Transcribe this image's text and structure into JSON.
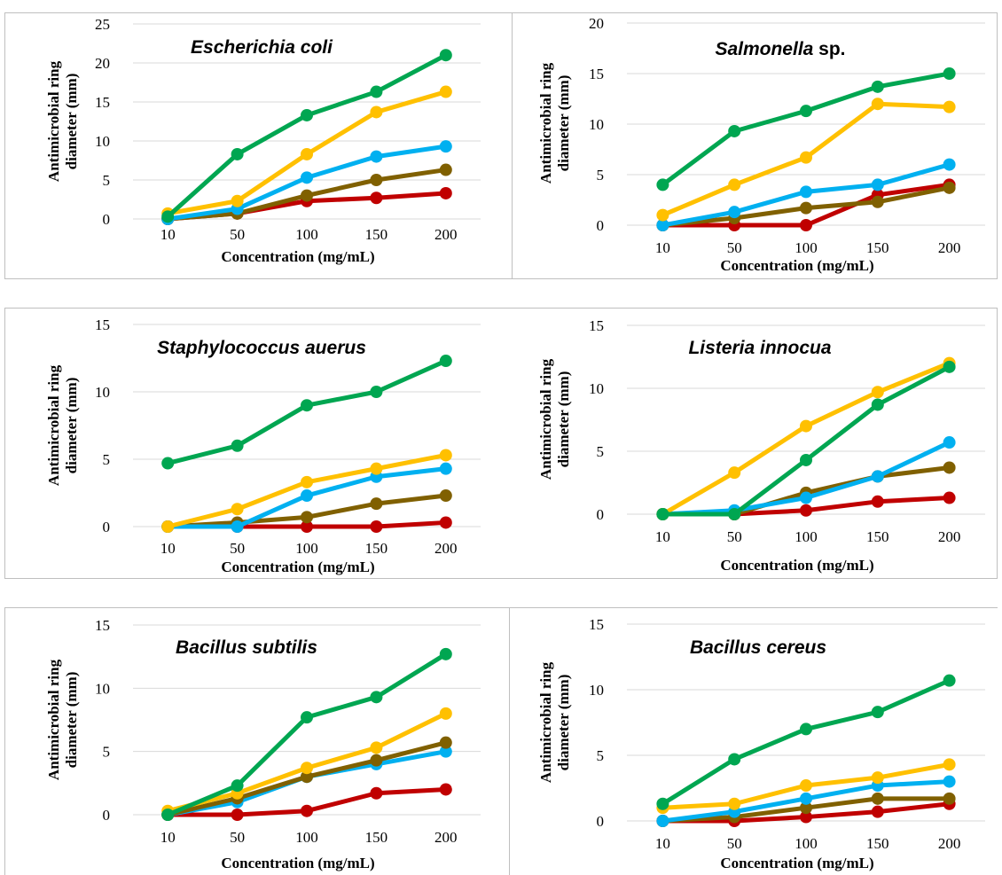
{
  "series_colors": [
    "#00a651",
    "#ffc000",
    "#00b0f0",
    "#806000",
    "#c00000"
  ],
  "xlabel": "Concentration (mg/mL)",
  "ylabel_lines": [
    "Antimicrobial ring",
    "diameter (mm)"
  ],
  "chart_data": [
    {
      "type": "line",
      "title": "Escherichia coli",
      "title_suffix": "",
      "categories": [
        "10",
        "50",
        "100",
        "150",
        "200"
      ],
      "ylim": [
        0,
        25
      ],
      "yticks": [
        0,
        5,
        10,
        15,
        20,
        25
      ],
      "grid": true,
      "series": [
        {
          "color": "#00a651",
          "values": [
            0.3,
            8.3,
            13.3,
            16.3,
            21.0
          ]
        },
        {
          "color": "#ffc000",
          "values": [
            0.7,
            2.3,
            8.3,
            13.7,
            16.3
          ]
        },
        {
          "color": "#00b0f0",
          "values": [
            0,
            1.3,
            5.3,
            8.0,
            9.3
          ]
        },
        {
          "color": "#806000",
          "values": [
            0,
            0.7,
            3.0,
            5.0,
            6.3
          ]
        },
        {
          "color": "#c00000",
          "values": [
            0,
            0.7,
            2.3,
            2.7,
            3.3
          ]
        }
      ]
    },
    {
      "type": "line",
      "title": "Salmonella",
      "title_suffix": " sp.",
      "categories": [
        "10",
        "50",
        "100",
        "150",
        "200"
      ],
      "ylim": [
        0,
        20
      ],
      "yticks": [
        0,
        5,
        10,
        15,
        20
      ],
      "grid": true,
      "series": [
        {
          "color": "#00a651",
          "values": [
            4.0,
            9.3,
            11.3,
            13.7,
            15.0
          ]
        },
        {
          "color": "#ffc000",
          "values": [
            1.0,
            4.0,
            6.7,
            12.0,
            11.7
          ]
        },
        {
          "color": "#00b0f0",
          "values": [
            0,
            1.3,
            3.3,
            4.0,
            6.0
          ]
        },
        {
          "color": "#806000",
          "values": [
            0,
            0.7,
            1.7,
            2.3,
            3.7
          ]
        },
        {
          "color": "#c00000",
          "values": [
            0,
            0,
            0,
            3.0,
            4.0
          ]
        }
      ]
    },
    {
      "type": "line",
      "title": "Staphylococcus auerus",
      "title_suffix": "",
      "categories": [
        "10",
        "50",
        "100",
        "150",
        "200"
      ],
      "ylim": [
        0,
        15
      ],
      "yticks": [
        0,
        5,
        10,
        15
      ],
      "grid": true,
      "series": [
        {
          "color": "#00a651",
          "values": [
            4.7,
            6.0,
            9.0,
            10.0,
            12.3
          ]
        },
        {
          "color": "#ffc000",
          "values": [
            0,
            1.3,
            3.3,
            4.3,
            5.3
          ]
        },
        {
          "color": "#00b0f0",
          "values": [
            0,
            0,
            2.3,
            3.7,
            4.3
          ]
        },
        {
          "color": "#806000",
          "values": [
            0,
            0.3,
            0.7,
            1.7,
            2.3
          ]
        },
        {
          "color": "#c00000",
          "values": [
            0,
            0,
            0,
            0,
            0.3
          ]
        }
      ]
    },
    {
      "type": "line",
      "title": "Listeria innocua",
      "title_suffix": "",
      "categories": [
        "10",
        "50",
        "100",
        "150",
        "200"
      ],
      "ylim": [
        0,
        15
      ],
      "yticks": [
        0,
        5,
        10,
        15
      ],
      "grid": true,
      "series": [
        {
          "color": "#00a651",
          "values": [
            0,
            0,
            4.3,
            8.7,
            11.7
          ]
        },
        {
          "color": "#ffc000",
          "values": [
            0,
            3.3,
            7.0,
            9.7,
            12.0
          ]
        },
        {
          "color": "#00b0f0",
          "values": [
            0,
            0.3,
            1.3,
            3.0,
            5.7
          ]
        },
        {
          "color": "#806000",
          "values": [
            0,
            0,
            1.7,
            3.0,
            3.7
          ]
        },
        {
          "color": "#c00000",
          "values": [
            0,
            0,
            0.3,
            1.0,
            1.3
          ]
        }
      ]
    },
    {
      "type": "line",
      "title": "Bacillus subtilis",
      "title_suffix": "",
      "categories": [
        "10",
        "50",
        "100",
        "150",
        "200"
      ],
      "ylim": [
        0,
        15
      ],
      "yticks": [
        0,
        5,
        10,
        15
      ],
      "grid": true,
      "series": [
        {
          "color": "#00a651",
          "values": [
            0,
            2.3,
            7.7,
            9.3,
            12.7
          ]
        },
        {
          "color": "#ffc000",
          "values": [
            0.3,
            1.7,
            3.7,
            5.3,
            8.0
          ]
        },
        {
          "color": "#806000",
          "values": [
            0,
            1.3,
            3.0,
            4.3,
            5.7
          ]
        },
        {
          "color": "#00b0f0",
          "values": [
            0,
            1.0,
            3.0,
            4.0,
            5.0
          ]
        },
        {
          "color": "#c00000",
          "values": [
            0,
            0,
            0.3,
            1.7,
            2.0
          ]
        }
      ]
    },
    {
      "type": "line",
      "title": "Bacillus cereus",
      "title_suffix": "",
      "categories": [
        "10",
        "50",
        "100",
        "150",
        "200"
      ],
      "ylim": [
        0,
        15
      ],
      "yticks": [
        0,
        5,
        10,
        15
      ],
      "grid": true,
      "series": [
        {
          "color": "#00a651",
          "values": [
            1.3,
            4.7,
            7.0,
            8.3,
            10.7
          ]
        },
        {
          "color": "#ffc000",
          "values": [
            1.0,
            1.3,
            2.7,
            3.3,
            4.3
          ]
        },
        {
          "color": "#00b0f0",
          "values": [
            0,
            0.7,
            1.7,
            2.7,
            3.0
          ]
        },
        {
          "color": "#806000",
          "values": [
            0,
            0.3,
            1.0,
            1.7,
            1.7
          ]
        },
        {
          "color": "#c00000",
          "values": [
            0,
            0,
            0.3,
            0.7,
            1.3
          ]
        }
      ]
    }
  ]
}
